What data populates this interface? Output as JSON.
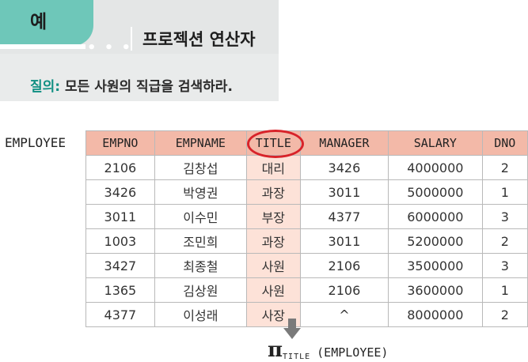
{
  "banner": {
    "tab_label": "예",
    "dots": "• • •",
    "title": "프로젝션 연산자",
    "query_label": "질의:",
    "query_text": " 모든 사원의 직급을 검색하라."
  },
  "relation_name": "EMPLOYEE",
  "table": {
    "headers": [
      "EMPNO",
      "EMPNAME",
      "TITLE",
      "MANAGER",
      "SALARY",
      "DNO"
    ],
    "rows": [
      [
        "2106",
        "김창섭",
        "대리",
        "3426",
        "4000000",
        "2"
      ],
      [
        "3426",
        "박영권",
        "과장",
        "3011",
        "5000000",
        "1"
      ],
      [
        "3011",
        "이수민",
        "부장",
        "4377",
        "6000000",
        "3"
      ],
      [
        "1003",
        "조민희",
        "과장",
        "3011",
        "5200000",
        "2"
      ],
      [
        "3427",
        "최종철",
        "사원",
        "2106",
        "3500000",
        "3"
      ],
      [
        "1365",
        "김상원",
        "사원",
        "2106",
        "3600000",
        "1"
      ],
      [
        "4377",
        "이성래",
        "사장",
        "^",
        "8000000",
        "2"
      ]
    ]
  },
  "highlight_color": "#d8232a",
  "expression": {
    "symbol": "π",
    "subscript": "TITLE",
    "argument": "(EMPLOYEE)"
  }
}
